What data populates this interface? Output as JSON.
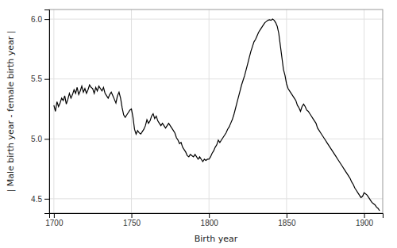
{
  "chart_data": {
    "type": "line",
    "xlabel": "Birth year",
    "ylabel": "| Male birth year - female birth year |",
    "color": "#000000",
    "grid": true,
    "xlim": [
      1697,
      1912
    ],
    "ylim": [
      4.38,
      6.08
    ],
    "xticks": [
      1700,
      1750,
      1800,
      1850,
      1900
    ],
    "yticks": [
      4.5,
      {
        "value": 5.0,
        "label": "5.0"
      },
      5.5,
      {
        "value": 6.0,
        "label": "6.0"
      }
    ],
    "x": [
      1700,
      1701,
      1702,
      1703,
      1704,
      1705,
      1706,
      1707,
      1708,
      1709,
      1710,
      1711,
      1712,
      1713,
      1714,
      1715,
      1716,
      1717,
      1718,
      1719,
      1720,
      1721,
      1722,
      1723,
      1724,
      1725,
      1726,
      1727,
      1728,
      1729,
      1730,
      1731,
      1732,
      1733,
      1734,
      1735,
      1736,
      1737,
      1738,
      1739,
      1740,
      1741,
      1742,
      1743,
      1744,
      1745,
      1746,
      1747,
      1748,
      1749,
      1750,
      1751,
      1752,
      1753,
      1754,
      1755,
      1756,
      1757,
      1758,
      1759,
      1760,
      1761,
      1762,
      1763,
      1764,
      1765,
      1766,
      1767,
      1768,
      1769,
      1770,
      1771,
      1772,
      1773,
      1774,
      1775,
      1776,
      1777,
      1778,
      1779,
      1780,
      1781,
      1782,
      1783,
      1784,
      1785,
      1786,
      1787,
      1788,
      1789,
      1790,
      1791,
      1792,
      1793,
      1794,
      1795,
      1796,
      1797,
      1798,
      1799,
      1800,
      1801,
      1802,
      1803,
      1804,
      1805,
      1806,
      1807,
      1808,
      1809,
      1810,
      1811,
      1812,
      1813,
      1814,
      1815,
      1816,
      1817,
      1818,
      1819,
      1820,
      1821,
      1822,
      1823,
      1824,
      1825,
      1826,
      1827,
      1828,
      1829,
      1830,
      1831,
      1832,
      1833,
      1834,
      1835,
      1836,
      1837,
      1838,
      1839,
      1840,
      1841,
      1842,
      1843,
      1844,
      1845,
      1846,
      1847,
      1848,
      1849,
      1850,
      1851,
      1852,
      1853,
      1854,
      1855,
      1856,
      1857,
      1858,
      1859,
      1860,
      1861,
      1862,
      1863,
      1864,
      1865,
      1866,
      1867,
      1868,
      1869,
      1870,
      1871,
      1872,
      1873,
      1874,
      1875,
      1876,
      1877,
      1878,
      1879,
      1880,
      1881,
      1882,
      1883,
      1884,
      1885,
      1886,
      1887,
      1888,
      1889,
      1890,
      1891,
      1892,
      1893,
      1894,
      1895,
      1896,
      1897,
      1898,
      1899,
      1900,
      1901,
      1902,
      1903,
      1904,
      1905,
      1906,
      1907,
      1908,
      1909,
      1910
    ],
    "values": [
      5.28,
      5.23,
      5.31,
      5.27,
      5.3,
      5.34,
      5.32,
      5.36,
      5.29,
      5.33,
      5.38,
      5.34,
      5.37,
      5.41,
      5.38,
      5.43,
      5.37,
      5.4,
      5.44,
      5.39,
      5.42,
      5.38,
      5.41,
      5.45,
      5.43,
      5.42,
      5.38,
      5.43,
      5.4,
      5.44,
      5.42,
      5.4,
      5.43,
      5.38,
      5.36,
      5.34,
      5.37,
      5.39,
      5.36,
      5.33,
      5.3,
      5.36,
      5.39,
      5.34,
      5.26,
      5.2,
      5.18,
      5.2,
      5.22,
      5.24,
      5.25,
      5.18,
      5.08,
      5.04,
      5.07,
      5.05,
      5.04,
      5.06,
      5.08,
      5.11,
      5.16,
      5.13,
      5.15,
      5.19,
      5.21,
      5.17,
      5.19,
      5.15,
      5.13,
      5.11,
      5.13,
      5.11,
      5.09,
      5.11,
      5.13,
      5.11,
      5.09,
      5.07,
      5.05,
      5.01,
      4.99,
      4.96,
      4.97,
      4.93,
      4.91,
      4.89,
      4.86,
      4.85,
      4.87,
      4.86,
      4.85,
      4.87,
      4.85,
      4.83,
      4.85,
      4.83,
      4.81,
      4.83,
      4.82,
      4.83,
      4.83,
      4.85,
      4.88,
      4.9,
      4.93,
      4.95,
      4.99,
      4.97,
      4.99,
      5.01,
      5.03,
      5.05,
      5.08,
      5.1,
      5.13,
      5.16,
      5.2,
      5.25,
      5.3,
      5.35,
      5.4,
      5.45,
      5.49,
      5.53,
      5.58,
      5.63,
      5.68,
      5.73,
      5.77,
      5.81,
      5.83,
      5.86,
      5.89,
      5.91,
      5.93,
      5.95,
      5.97,
      5.98,
      5.99,
      5.995,
      5.99,
      6.0,
      5.99,
      5.97,
      5.94,
      5.88,
      5.78,
      5.68,
      5.58,
      5.53,
      5.46,
      5.42,
      5.4,
      5.38,
      5.36,
      5.34,
      5.32,
      5.28,
      5.26,
      5.23,
      5.27,
      5.29,
      5.27,
      5.24,
      5.23,
      5.21,
      5.19,
      5.17,
      5.15,
      5.13,
      5.09,
      5.07,
      5.05,
      5.03,
      5.01,
      4.99,
      4.97,
      4.95,
      4.93,
      4.91,
      4.89,
      4.87,
      4.85,
      4.83,
      4.81,
      4.79,
      4.77,
      4.75,
      4.73,
      4.71,
      4.69,
      4.67,
      4.64,
      4.62,
      4.59,
      4.57,
      4.55,
      4.53,
      4.51,
      4.52,
      4.55,
      4.54,
      4.53,
      4.51,
      4.49,
      4.47,
      4.46,
      4.45,
      4.43,
      4.42,
      4.4
    ]
  }
}
